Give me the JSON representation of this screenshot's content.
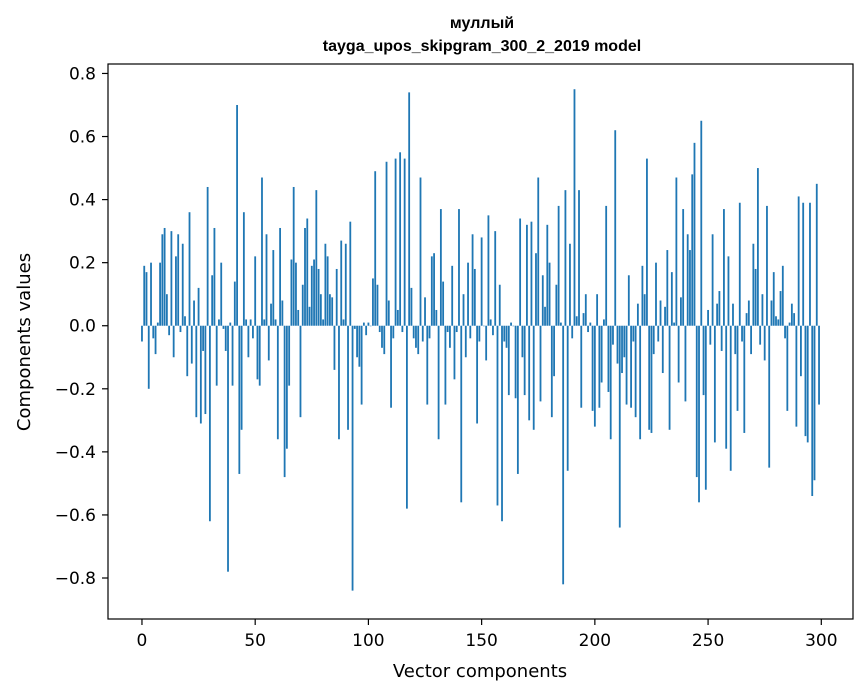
{
  "chart_data": {
    "type": "bar",
    "title": [
      "муллый",
      "tayga_upos_skipgram_300_2_2019 model"
    ],
    "xlabel": "Vector components",
    "ylabel": "Components values",
    "xlim": [
      -15,
      314
    ],
    "ylim": [
      -0.93,
      0.83
    ],
    "xticks": [
      0,
      50,
      100,
      150,
      200,
      250,
      300
    ],
    "xtick_labels": [
      "0",
      "50",
      "100",
      "150",
      "200",
      "250",
      "300"
    ],
    "yticks": [
      -0.8,
      -0.6,
      -0.4,
      -0.2,
      0.0,
      0.2,
      0.4,
      0.6,
      0.8
    ],
    "ytick_labels": [
      "−0.8",
      "−0.6",
      "−0.4",
      "−0.2",
      "0.0",
      "0.2",
      "0.4",
      "0.6",
      "0.8"
    ],
    "grid": false,
    "bar_color": "#1f77b4",
    "x": [
      0,
      1,
      2,
      3,
      4,
      5,
      6,
      7,
      8,
      9,
      10,
      11,
      12,
      13,
      14,
      15,
      16,
      17,
      18,
      19,
      20,
      21,
      22,
      23,
      24,
      25,
      26,
      27,
      28,
      29,
      30,
      31,
      32,
      33,
      34,
      35,
      36,
      37,
      38,
      39,
      40,
      41,
      42,
      43,
      44,
      45,
      46,
      47,
      48,
      49,
      50,
      51,
      52,
      53,
      54,
      55,
      56,
      57,
      58,
      59,
      60,
      61,
      62,
      63,
      64,
      65,
      66,
      67,
      68,
      69,
      70,
      71,
      72,
      73,
      74,
      75,
      76,
      77,
      78,
      79,
      80,
      81,
      82,
      83,
      84,
      85,
      86,
      87,
      88,
      89,
      90,
      91,
      92,
      93,
      94,
      95,
      96,
      97,
      98,
      99,
      100,
      101,
      102,
      103,
      104,
      105,
      106,
      107,
      108,
      109,
      110,
      111,
      112,
      113,
      114,
      115,
      116,
      117,
      118,
      119,
      120,
      121,
      122,
      123,
      124,
      125,
      126,
      127,
      128,
      129,
      130,
      131,
      132,
      133,
      134,
      135,
      136,
      137,
      138,
      139,
      140,
      141,
      142,
      143,
      144,
      145,
      146,
      147,
      148,
      149,
      150,
      151,
      152,
      153,
      154,
      155,
      156,
      157,
      158,
      159,
      160,
      161,
      162,
      163,
      164,
      165,
      166,
      167,
      168,
      169,
      170,
      171,
      172,
      173,
      174,
      175,
      176,
      177,
      178,
      179,
      180,
      181,
      182,
      183,
      184,
      185,
      186,
      187,
      188,
      189,
      190,
      191,
      192,
      193,
      194,
      195,
      196,
      197,
      198,
      199,
      200,
      201,
      202,
      203,
      204,
      205,
      206,
      207,
      208,
      209,
      210,
      211,
      212,
      213,
      214,
      215,
      216,
      217,
      218,
      219,
      220,
      221,
      222,
      223,
      224,
      225,
      226,
      227,
      228,
      229,
      230,
      231,
      232,
      233,
      234,
      235,
      236,
      237,
      238,
      239,
      240,
      241,
      242,
      243,
      244,
      245,
      246,
      247,
      248,
      249,
      250,
      251,
      252,
      253,
      254,
      255,
      256,
      257,
      258,
      259,
      260,
      261,
      262,
      263,
      264,
      265,
      266,
      267,
      268,
      269,
      270,
      271,
      272,
      273,
      274,
      275,
      276,
      277,
      278,
      279,
      280,
      281,
      282,
      283,
      284,
      285,
      286,
      287,
      288,
      289,
      290,
      291,
      292,
      293,
      294,
      295,
      296,
      297,
      298,
      299
    ],
    "values": [
      -0.05,
      0.19,
      0.17,
      -0.2,
      0.2,
      -0.04,
      -0.09,
      0.01,
      0.2,
      0.29,
      0.31,
      0.1,
      -0.03,
      0.3,
      -0.1,
      0.22,
      0.29,
      -0.02,
      0.26,
      0.03,
      -0.16,
      0.36,
      -0.12,
      0.08,
      -0.29,
      0.12,
      -0.31,
      -0.08,
      -0.28,
      0.44,
      -0.62,
      0.16,
      0.31,
      -0.19,
      0.02,
      0.2,
      -0.01,
      -0.08,
      -0.78,
      0.01,
      -0.19,
      0.14,
      0.7,
      -0.47,
      -0.33,
      0.36,
      0.02,
      -0.1,
      0.02,
      -0.04,
      0.22,
      -0.17,
      -0.19,
      0.47,
      0.02,
      0.29,
      -0.11,
      0.07,
      0.24,
      0.02,
      -0.36,
      0.31,
      0.08,
      -0.48,
      -0.39,
      -0.19,
      0.21,
      0.44,
      0.2,
      0.05,
      -0.29,
      0.13,
      0.31,
      0.34,
      0.06,
      0.19,
      0.21,
      0.43,
      0.18,
      0.1,
      0.02,
      0.26,
      0.22,
      0.1,
      0.09,
      -0.14,
      0.18,
      -0.36,
      0.27,
      0.02,
      0.26,
      -0.33,
      0.33,
      -0.84,
      -0.01,
      -0.1,
      -0.13,
      -0.25,
      0.01,
      -0.03,
      0.01,
      0.0,
      0.15,
      0.49,
      0.13,
      -0.02,
      -0.07,
      -0.09,
      0.52,
      0.08,
      -0.26,
      -0.04,
      0.53,
      0.05,
      0.55,
      -0.02,
      0.53,
      -0.58,
      0.74,
      0.12,
      -0.04,
      -0.07,
      -0.09,
      0.47,
      -0.05,
      0.09,
      -0.25,
      -0.04,
      0.22,
      0.23,
      0.05,
      -0.36,
      0.37,
      0.14,
      -0.25,
      -0.02,
      -0.07,
      0.19,
      -0.17,
      -0.02,
      0.37,
      -0.56,
      0.1,
      -0.1,
      0.2,
      -0.04,
      0.29,
      0.18,
      -0.31,
      -0.05,
      0.28,
      0.0,
      -0.11,
      0.35,
      0.02,
      -0.03,
      0.3,
      -0.57,
      0.13,
      -0.62,
      -0.05,
      -0.07,
      -0.22,
      0.01,
      0.0,
      -0.23,
      -0.47,
      0.34,
      -0.1,
      -0.22,
      0.32,
      -0.3,
      0.33,
      -0.33,
      0.23,
      0.47,
      -0.24,
      0.16,
      0.06,
      0.32,
      0.2,
      -0.29,
      -0.16,
      0.13,
      0.38,
      0.01,
      -0.82,
      0.43,
      -0.46,
      0.26,
      -0.04,
      0.75,
      0.03,
      0.43,
      -0.26,
      0.04,
      0.1,
      -0.02,
      0.01,
      -0.27,
      -0.32,
      0.1,
      -0.26,
      -0.18,
      0.02,
      0.38,
      -0.21,
      -0.36,
      -0.06,
      0.62,
      -0.12,
      -0.64,
      -0.15,
      -0.1,
      -0.25,
      0.16,
      -0.26,
      -0.05,
      -0.29,
      0.07,
      -0.36,
      0.19,
      0.1,
      0.53,
      -0.33,
      -0.34,
      -0.09,
      0.2,
      -0.05,
      0.08,
      -0.15,
      0.06,
      0.24,
      -0.33,
      0.17,
      0.01,
      0.47,
      -0.18,
      0.09,
      0.37,
      -0.24,
      0.29,
      0.24,
      0.48,
      0.58,
      -0.48,
      -0.56,
      0.65,
      -0.22,
      -0.52,
      0.05,
      -0.06,
      0.29,
      -0.37,
      0.07,
      0.11,
      -0.08,
      0.37,
      -0.39,
      0.22,
      -0.46,
      0.07,
      -0.09,
      -0.27,
      0.39,
      -0.05,
      -0.34,
      0.04,
      0.08,
      -0.09,
      0.26,
      0.18,
      0.5,
      -0.06,
      0.1,
      -0.11,
      0.38,
      -0.45,
      0.08,
      0.17,
      0.03,
      0.02,
      0.11,
      0.19,
      -0.04,
      -0.27,
      0.01,
      0.07,
      0.04,
      -0.32,
      0.41,
      -0.16,
      0.39,
      -0.35,
      -0.37,
      0.39,
      -0.54,
      -0.49,
      0.45,
      -0.25
    ]
  }
}
